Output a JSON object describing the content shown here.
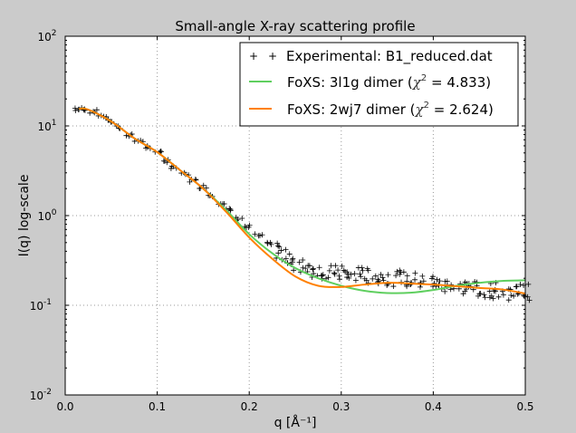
{
  "chart_data": {
    "type": "line",
    "title": "Small-angle X-ray scattering profile",
    "xlabel": "q [Å⁻¹]",
    "ylabel": "I(q) log-scale",
    "xlim": [
      0.0,
      0.5
    ],
    "ylim": [
      0.01,
      100
    ],
    "yscale": "log",
    "grid": true,
    "legend_position": "top-right",
    "x_ticks": [
      "0.0",
      "0.1",
      "0.2",
      "0.3",
      "0.4",
      "0.5"
    ],
    "y_ticks": [
      {
        "base": "10",
        "exp": "-2",
        "value": 0.01
      },
      {
        "base": "10",
        "exp": "-1",
        "value": 0.1
      },
      {
        "base": "10",
        "exp": "0",
        "value": 1
      },
      {
        "base": "10",
        "exp": "1",
        "value": 10
      },
      {
        "base": "10",
        "exp": "2",
        "value": 100
      }
    ],
    "series": [
      {
        "name": "Experimental: B1_reduced.dat",
        "style": "markers",
        "marker": "+",
        "color": "#000000",
        "x": [
          0.015,
          0.02,
          0.03,
          0.04,
          0.05,
          0.06,
          0.07,
          0.08,
          0.09,
          0.1,
          0.11,
          0.12,
          0.13,
          0.14,
          0.15,
          0.16,
          0.17,
          0.18,
          0.19,
          0.2,
          0.21,
          0.22,
          0.23,
          0.24,
          0.25,
          0.26,
          0.27,
          0.28,
          0.29,
          0.3,
          0.31,
          0.32,
          0.33,
          0.34,
          0.35,
          0.36,
          0.37,
          0.38,
          0.39,
          0.4,
          0.41,
          0.42,
          0.43,
          0.44,
          0.45,
          0.46,
          0.47,
          0.48,
          0.49,
          0.5
        ],
        "y": [
          15.2,
          15.5,
          14.5,
          13,
          11.3,
          9.6,
          8,
          6.8,
          5.8,
          5.0,
          4.1,
          3.4,
          2.9,
          2.45,
          2.1,
          1.7,
          1.4,
          1.15,
          0.92,
          0.75,
          0.6,
          0.48,
          0.4,
          0.34,
          0.3,
          0.27,
          0.25,
          0.24,
          0.23,
          0.225,
          0.215,
          0.22,
          0.21,
          0.21,
          0.205,
          0.2,
          0.195,
          0.19,
          0.185,
          0.18,
          0.17,
          0.165,
          0.16,
          0.155,
          0.15,
          0.15,
          0.145,
          0.14,
          0.145,
          0.14
        ]
      },
      {
        "name_prefix": "FoXS: 3l1g dimer (",
        "chi_symbol": "χ",
        "chi_exp": "2",
        "name_suffix": " = 4.833)",
        "style": "line",
        "color": "#5fcf5f",
        "x": [
          0.015,
          0.025,
          0.05,
          0.075,
          0.1,
          0.125,
          0.15,
          0.175,
          0.2,
          0.225,
          0.25,
          0.275,
          0.3,
          0.325,
          0.35,
          0.375,
          0.4,
          0.425,
          0.45,
          0.475,
          0.5
        ],
        "y": [
          15.5,
          15.2,
          11.2,
          7.3,
          5.1,
          3.2,
          2.0,
          1.15,
          0.62,
          0.38,
          0.26,
          0.2,
          0.165,
          0.145,
          0.137,
          0.138,
          0.148,
          0.165,
          0.178,
          0.187,
          0.19
        ]
      },
      {
        "name_prefix": "FoXS: 2wj7 dimer (",
        "chi_symbol": "χ",
        "chi_exp": "2",
        "name_suffix": " = 2.624)",
        "style": "line",
        "color": "#ff8000",
        "x": [
          0.015,
          0.025,
          0.05,
          0.075,
          0.1,
          0.125,
          0.15,
          0.175,
          0.2,
          0.225,
          0.25,
          0.275,
          0.3,
          0.325,
          0.35,
          0.375,
          0.4,
          0.425,
          0.45,
          0.475,
          0.5
        ],
        "y": [
          15.5,
          15.2,
          11.2,
          7.3,
          5.1,
          3.2,
          2.0,
          1.1,
          0.57,
          0.33,
          0.21,
          0.165,
          0.16,
          0.17,
          0.178,
          0.175,
          0.17,
          0.163,
          0.156,
          0.15,
          0.135
        ]
      }
    ]
  }
}
